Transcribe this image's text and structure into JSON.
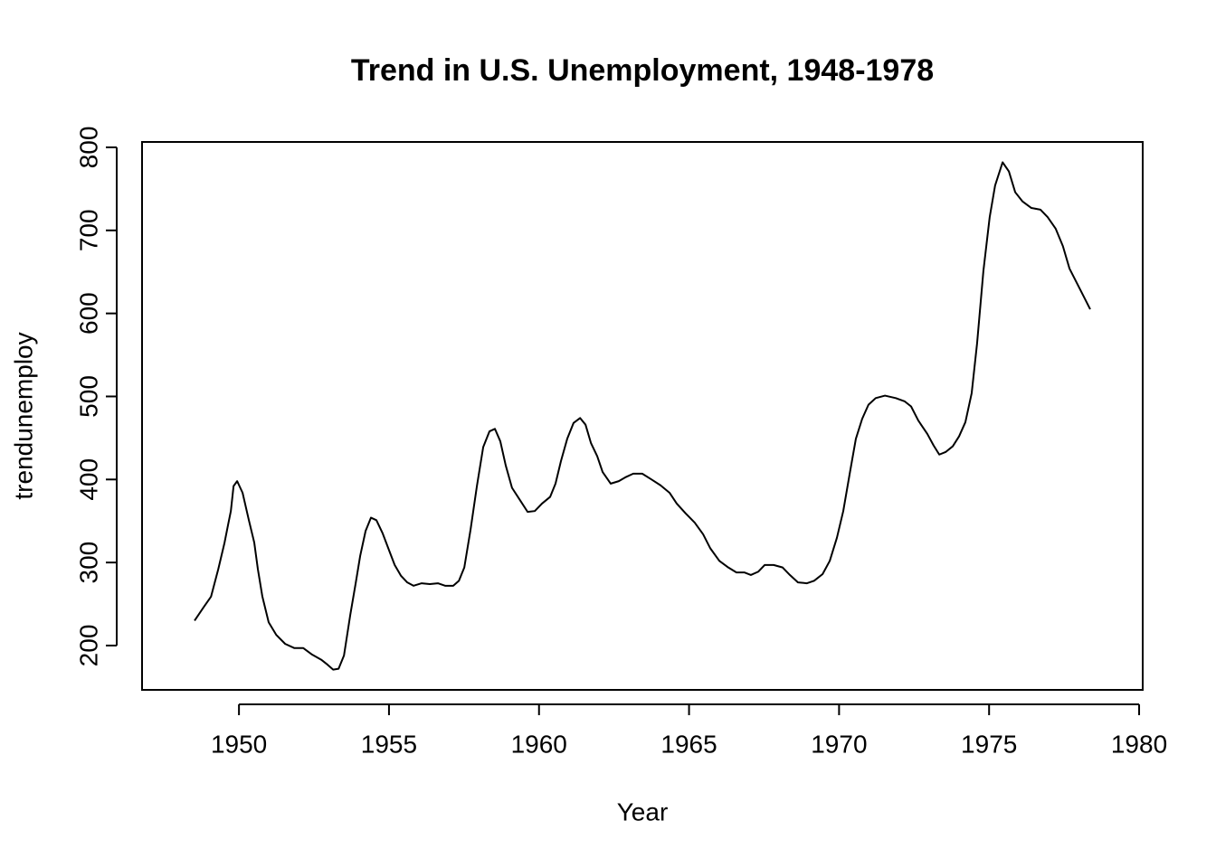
{
  "chart_data": {
    "type": "line",
    "title": "Trend in U.S. Unemployment, 1948-1978",
    "x_label": "Year",
    "y_label": "trendunemploy",
    "color": "#000000",
    "x": [
      1948.52,
      1948.82,
      1949.07,
      1949.31,
      1949.52,
      1949.64,
      1949.73,
      1949.82,
      1949.94,
      1950.12,
      1950.33,
      1950.51,
      1950.63,
      1950.78,
      1950.99,
      1951.24,
      1951.54,
      1951.84,
      1952.14,
      1952.44,
      1952.74,
      1952.95,
      1953.14,
      1953.32,
      1953.5,
      1953.71,
      1953.89,
      1954.04,
      1954.22,
      1954.4,
      1954.58,
      1954.79,
      1955.0,
      1955.19,
      1955.4,
      1955.61,
      1955.82,
      1956.09,
      1956.36,
      1956.63,
      1956.87,
      1957.14,
      1957.33,
      1957.51,
      1957.72,
      1957.93,
      1958.14,
      1958.35,
      1958.53,
      1958.71,
      1958.89,
      1959.1,
      1959.35,
      1959.62,
      1959.86,
      1960.1,
      1960.37,
      1960.55,
      1960.73,
      1960.94,
      1961.15,
      1961.37,
      1961.55,
      1961.73,
      1961.94,
      1962.12,
      1962.39,
      1962.66,
      1962.9,
      1963.14,
      1963.44,
      1963.75,
      1964.05,
      1964.35,
      1964.59,
      1964.89,
      1965.19,
      1965.47,
      1965.71,
      1966.01,
      1966.31,
      1966.58,
      1966.85,
      1967.06,
      1967.31,
      1967.52,
      1967.82,
      1968.12,
      1968.36,
      1968.63,
      1968.93,
      1969.17,
      1969.45,
      1969.69,
      1969.93,
      1970.14,
      1970.35,
      1970.56,
      1970.77,
      1970.98,
      1971.22,
      1971.53,
      1971.89,
      1972.19,
      1972.4,
      1972.64,
      1972.94,
      1973.15,
      1973.34,
      1973.55,
      1973.79,
      1974.0,
      1974.21,
      1974.42,
      1974.6,
      1974.81,
      1975.02,
      1975.2,
      1975.45,
      1975.66,
      1975.87,
      1976.11,
      1976.41,
      1976.71,
      1976.95,
      1977.22,
      1977.46,
      1977.68,
      1977.92,
      1978.16,
      1978.37
    ],
    "values": [
      230,
      246,
      259,
      292,
      324,
      346,
      362,
      392,
      398,
      384,
      351,
      324,
      292,
      259,
      228,
      213,
      202,
      197,
      197,
      189,
      183,
      177,
      171,
      172,
      188,
      237,
      275,
      308,
      338,
      354,
      351,
      335,
      315,
      297,
      284,
      276,
      272,
      275,
      274,
      275,
      272,
      272,
      278,
      294,
      340,
      392,
      439,
      458,
      461,
      446,
      417,
      390,
      376,
      361,
      362,
      371,
      379,
      395,
      422,
      449,
      468,
      474,
      466,
      444,
      428,
      409,
      395,
      398,
      403,
      407,
      407,
      400,
      393,
      384,
      371,
      359,
      348,
      334,
      317,
      302,
      294,
      288,
      288,
      285,
      289,
      297,
      297,
      294,
      285,
      276,
      275,
      278,
      286,
      302,
      330,
      362,
      406,
      449,
      473,
      490,
      498,
      501,
      498,
      494,
      488,
      471,
      455,
      441,
      430,
      433,
      440,
      452,
      469,
      504,
      564,
      651,
      716,
      754,
      782,
      771,
      746,
      735,
      727,
      725,
      716,
      702,
      681,
      654,
      637,
      620,
      605
    ],
    "xlim": [
      1946.77,
      1980.12
    ],
    "ylim": [
      146.6,
      806.5
    ],
    "xticks": [
      1950,
      1955,
      1960,
      1965,
      1970,
      1975,
      1980
    ],
    "yticks": [
      200,
      300,
      400,
      500,
      600,
      700,
      800
    ]
  }
}
